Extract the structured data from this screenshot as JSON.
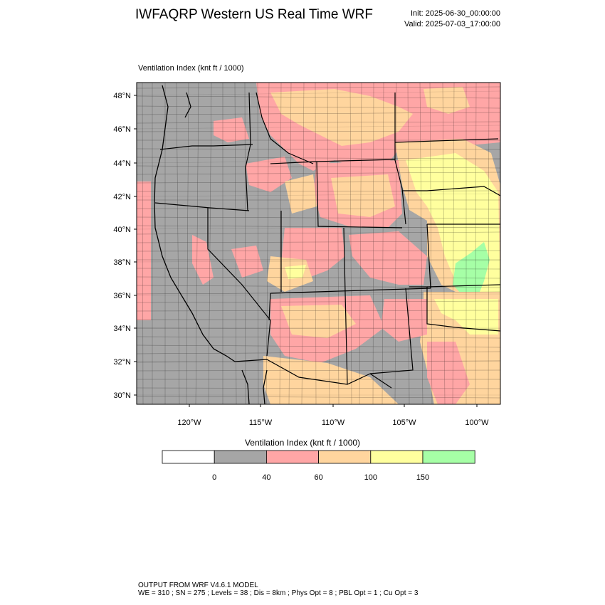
{
  "header": {
    "title": "IWFAQRP Western US Real Time WRF",
    "init": "Init: 2025-06-30_00:00:00",
    "valid": "Valid: 2025-07-03_17:00:00"
  },
  "map": {
    "field_label": "Ventilation Index   (knt ft / 1000)",
    "lat_labels": [
      "48°N",
      "46°N",
      "44°N",
      "42°N",
      "40°N",
      "38°N",
      "36°N",
      "34°N",
      "32°N",
      "30°N"
    ],
    "lon_labels": [
      "120°W",
      "115°W",
      "110°W",
      "105°W",
      "100°W"
    ]
  },
  "colorbar": {
    "title": "Ventilation Index   (knt ft / 1000)",
    "tick_labels": [
      "0",
      "40",
      "60",
      "100",
      "150"
    ],
    "colors": [
      "#ffffff",
      "#a6a6a6",
      "#ffa6a6",
      "#ffd59e",
      "#ffff9e",
      "#a6ffa6"
    ]
  },
  "footer": {
    "line1": "OUTPUT FROM WRF V4.6.1 MODEL",
    "line2": "WE = 310 ; SN = 275 ; Levels = 38 ; Dis = 8km ; Phys Opt = 8 ; PBL Opt = 1 ; Cu Opt = 3"
  },
  "palette": {
    "gray": "#a6a6a6",
    "pink": "#ffa6a6",
    "tan": "#ffd59e",
    "yellow": "#ffff9e",
    "green": "#a6ffa6"
  }
}
